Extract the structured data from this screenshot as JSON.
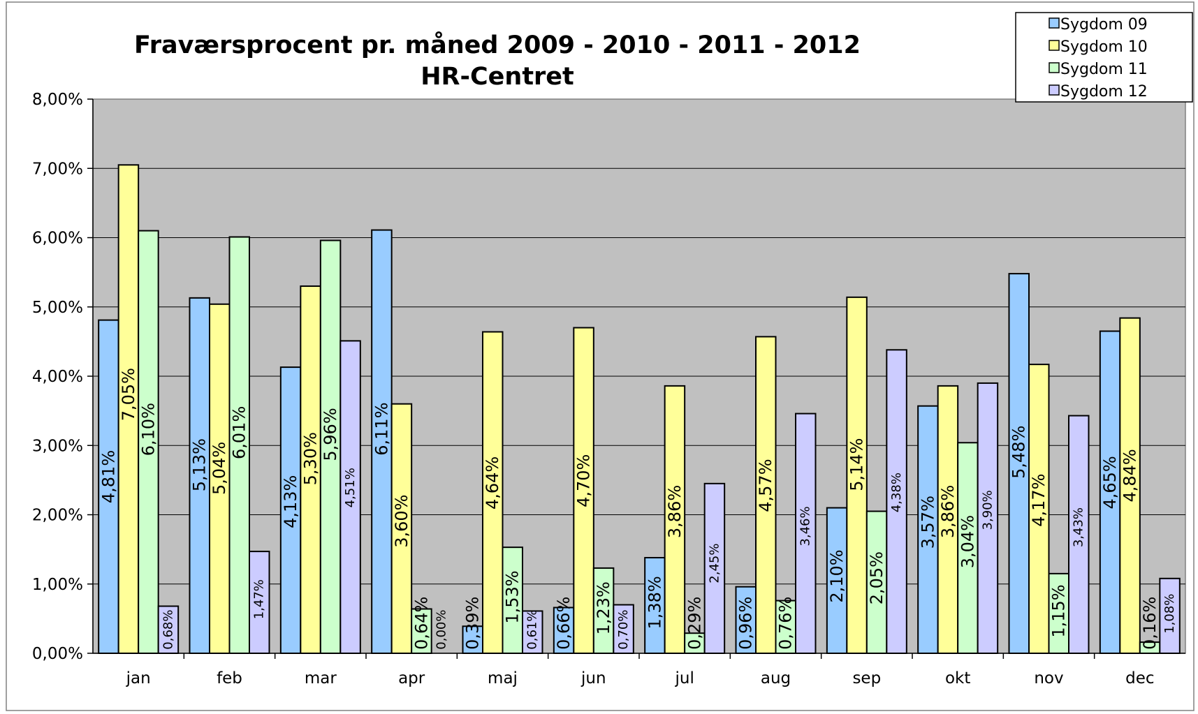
{
  "chart_data": {
    "type": "bar",
    "title": "Fraværsprocent pr. måned 2009 - 2010 - 2011 - 2012",
    "subtitle": "HR-Centret",
    "categories": [
      "jan",
      "feb",
      "mar",
      "apr",
      "maj",
      "jun",
      "jul",
      "aug",
      "sep",
      "okt",
      "nov",
      "dec"
    ],
    "series": [
      {
        "name": "Sygdom 09",
        "color": "#99ccff",
        "values": [
          4.81,
          5.13,
          4.13,
          6.11,
          0.39,
          0.66,
          1.38,
          0.96,
          2.1,
          3.57,
          5.48,
          4.65
        ],
        "labels": [
          "4,81%",
          "5,13%",
          "4,13%",
          "6,11%",
          "0,39%",
          "0,66%",
          "1,38%",
          "0,96%",
          "2,10%",
          "3,57%",
          "5,48%",
          "4,65%"
        ]
      },
      {
        "name": "Sygdom 10",
        "color": "#ffff99",
        "values": [
          7.05,
          5.04,
          5.3,
          3.6,
          4.64,
          4.7,
          3.86,
          4.57,
          5.14,
          3.86,
          4.17,
          4.84
        ],
        "labels": [
          "7,05%",
          "5,04%",
          "5,30%",
          "3,60%",
          "4,64%",
          "4,70%",
          "3,86%",
          "4,57%",
          "5,14%",
          "3,86%",
          "4,17%",
          "4,84%"
        ]
      },
      {
        "name": "Sygdom 11",
        "color": "#ccffcc",
        "values": [
          6.1,
          6.01,
          5.96,
          0.64,
          1.53,
          1.23,
          0.29,
          0.76,
          2.05,
          3.04,
          1.15,
          0.16
        ],
        "labels": [
          "6,10%",
          "6,01%",
          "5,96%",
          "0,64%",
          "1,53%",
          "1,23%",
          "0,29%",
          "0,76%",
          "2,05%",
          "3,04%",
          "1,15%",
          "0,16%"
        ]
      },
      {
        "name": "Sygdom 12",
        "color": "#ccccff",
        "values": [
          0.68,
          1.47,
          4.51,
          0.0,
          0.61,
          0.7,
          2.45,
          3.46,
          4.38,
          3.9,
          3.43,
          1.08
        ],
        "labels": [
          "0,68%",
          "1,47%",
          "4,51%",
          "0,00%",
          "0,61%",
          "0,70%",
          "2,45%",
          "3,46%",
          "4,38%",
          "3,90%",
          "3,43%",
          "1,08%"
        ]
      }
    ],
    "ylim": [
      0,
      8
    ],
    "yticks": [
      0,
      1,
      2,
      3,
      4,
      5,
      6,
      7,
      8
    ],
    "ytick_labels": [
      "0,00%",
      "1,00%",
      "2,00%",
      "3,00%",
      "4,00%",
      "5,00%",
      "6,00%",
      "7,00%",
      "8,00%"
    ],
    "xlabel": "",
    "ylabel": "",
    "grid": true,
    "plot_background": "#c0c0c0",
    "legend_position": "top-right"
  }
}
